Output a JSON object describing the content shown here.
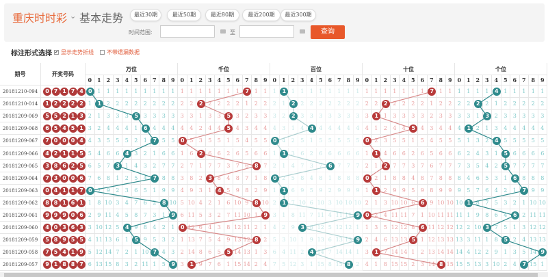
{
  "header": {
    "brand": "重庆时时彩",
    "subtitle": "基本走势",
    "periods": [
      "最近30期",
      "最近50期",
      "最近80期",
      "最近200期",
      "最近300期"
    ],
    "time_range_label": "时间范围:",
    "to_label": "至",
    "start_value": "",
    "end_value": "",
    "query_label": "查询"
  },
  "options": {
    "title": "标注形式选择",
    "show_trend": "显示走势折线",
    "show_trend_checked": true,
    "no_omission": "不带遗漏数据",
    "no_omission_checked": false
  },
  "table": {
    "col_issue": "期号",
    "col_draw": "开奖号码",
    "positions": [
      "万位",
      "千位",
      "百位",
      "十位",
      "个位"
    ],
    "digits": [
      "0",
      "1",
      "2",
      "3",
      "4",
      "5",
      "6",
      "7",
      "8",
      "9"
    ],
    "rows": [
      {
        "issue": "20181210-094",
        "draw": [
          0,
          7,
          1,
          7,
          4
        ]
      },
      {
        "issue": "20181210-014",
        "draw": [
          1,
          2,
          2,
          2,
          2
        ]
      },
      {
        "issue": "20181209-069",
        "draw": [
          5,
          5,
          2,
          1,
          3
        ]
      },
      {
        "issue": "20181209-068",
        "draw": [
          6,
          5,
          4,
          5,
          1
        ]
      },
      {
        "issue": "20181209-067",
        "draw": [
          7,
          0,
          0,
          0,
          4
        ]
      },
      {
        "issue": "20181209-066",
        "draw": [
          4,
          2,
          1,
          1,
          5
        ]
      },
      {
        "issue": "20181209-065",
        "draw": [
          3,
          8,
          6,
          2,
          5
        ]
      },
      {
        "issue": "20181209-064",
        "draw": [
          7,
          3,
          0,
          0,
          6
        ]
      },
      {
        "issue": "20181209-063",
        "draw": [
          0,
          4,
          1,
          1,
          7
        ]
      },
      {
        "issue": "20181209-062",
        "draw": [
          8,
          8,
          1,
          6,
          1
        ]
      },
      {
        "issue": "20181209-061",
        "draw": [
          9,
          9,
          9,
          0,
          6
        ]
      },
      {
        "issue": "20181209-060",
        "draw": [
          4,
          0,
          3,
          6,
          3
        ]
      },
      {
        "issue": "20181209-059",
        "draw": [
          5,
          8,
          9,
          5,
          5
        ]
      },
      {
        "issue": "20181209-058",
        "draw": [
          7,
          5,
          4,
          1,
          9
        ]
      },
      {
        "issue": "20181209-057",
        "draw": [
          9,
          1,
          8,
          8,
          7
        ]
      }
    ]
  },
  "colors": {
    "teal": "#2f8a8c",
    "red": "#b83a3a",
    "teal_text": "#7fc9c9",
    "red_text": "#e9a0a0",
    "accent": "#e8582a"
  }
}
